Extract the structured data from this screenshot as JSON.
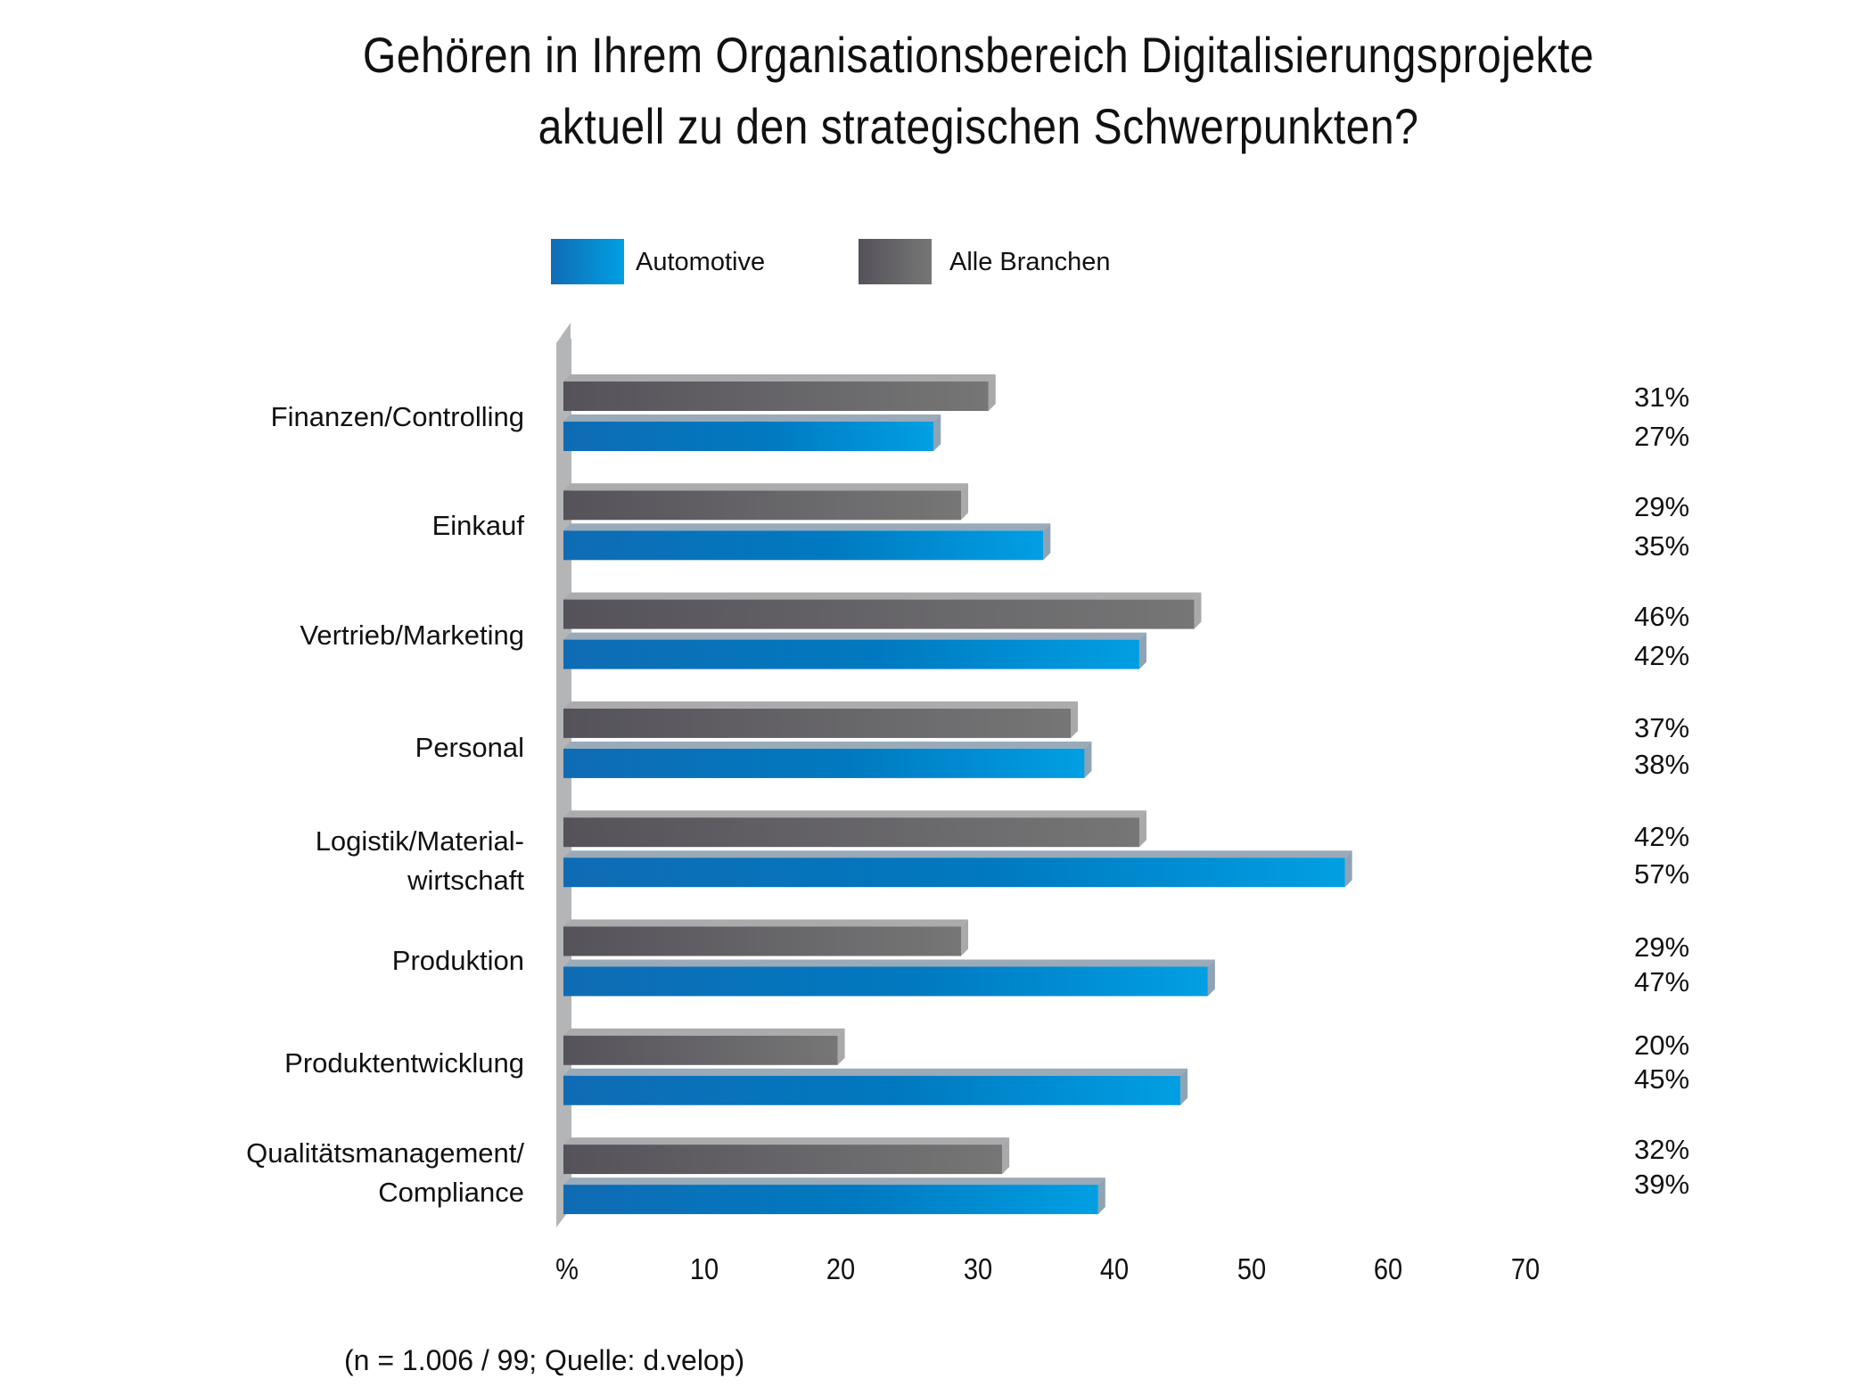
{
  "chart_data": {
    "type": "bar",
    "orientation": "horizontal",
    "title": "Gehören in Ihrem Organisationsbereich Digitalisierungsprojekte aktuell zu den strategischen Schwerpunkten?",
    "title_lines": [
      "Gehören in Ihrem Organisationsbereich Digitalisierungsprojekte",
      "aktuell zu den strategischen Schwerpunkten?"
    ],
    "categories": [
      [
        "Finanzen/Controlling"
      ],
      [
        "Einkauf"
      ],
      [
        "Vertrieb/Marketing"
      ],
      [
        "Personal"
      ],
      [
        "Logistik/Material-",
        "wirtschaft"
      ],
      [
        "Produktion"
      ],
      [
        "Produktentwicklung"
      ],
      [
        "Qualitätsmanagement/",
        "Compliance"
      ]
    ],
    "series": [
      {
        "name": "Alle Branchen",
        "color_start": "#55525a",
        "color_end": "#767676",
        "top_color": "#abaaac",
        "values": [
          31,
          29,
          46,
          37,
          42,
          29,
          20,
          32
        ]
      },
      {
        "name": "Automotive",
        "color_start": "#0f6cb4",
        "color_end": "#019fe3",
        "top_color": "#9aaab8",
        "values": [
          27,
          35,
          42,
          38,
          57,
          47,
          45,
          39
        ]
      }
    ],
    "value_labels": [
      [
        "31%",
        "27%"
      ],
      [
        "29%",
        "35%"
      ],
      [
        "46%",
        "42%"
      ],
      [
        "37%",
        "38%"
      ],
      [
        "42%",
        "57%"
      ],
      [
        "29%",
        "47%"
      ],
      [
        "20%",
        "45%"
      ],
      [
        "32%",
        "39%"
      ]
    ],
    "xlabel": "%",
    "ylabel": "",
    "xlim": [
      0,
      70
    ],
    "x_ticks": [
      "%",
      "10",
      "20",
      "30",
      "40",
      "50",
      "60",
      "70"
    ],
    "grid": false,
    "legend": {
      "position": "top",
      "order": [
        "Automotive",
        "Alle Branchen"
      ]
    },
    "footnote": "(n = 1.006 / 99; Quelle: d.velop)",
    "axis_color": "#b4b5b7"
  }
}
